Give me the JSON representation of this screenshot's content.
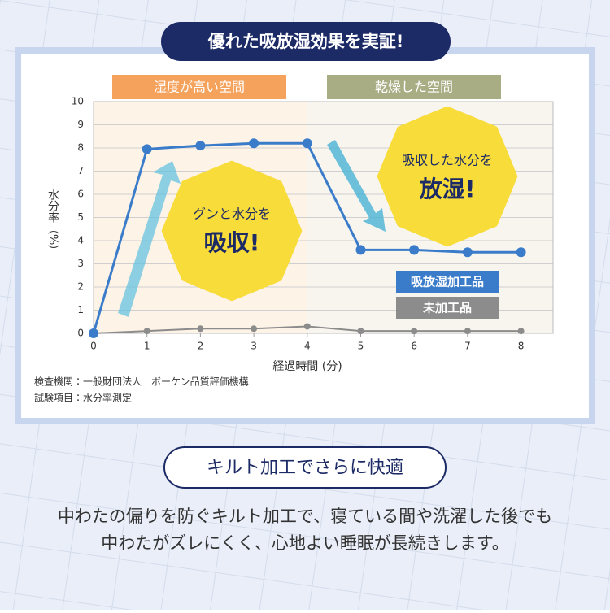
{
  "banner": "優れた吸放湿効果を実証!",
  "chart_data": {
    "type": "line",
    "regions": [
      "湿度が高い空間",
      "乾燥した空間"
    ],
    "callouts": [
      [
        "グンと水分を",
        "吸収!"
      ],
      [
        "吸収した水分を",
        "放湿!"
      ]
    ],
    "y_label": "水分率（%）",
    "x_label": "経過時間 (分)",
    "x": [
      0,
      1,
      2,
      3,
      4,
      5,
      6,
      7,
      8
    ],
    "series": [
      {
        "name": "吸放湿加工品",
        "color": "#3a7cc9",
        "values": [
          0,
          7.95,
          8.1,
          8.2,
          8.2,
          3.6,
          3.6,
          3.5,
          3.5
        ]
      },
      {
        "name": "未加工品",
        "color": "#8c8c8c",
        "values": [
          0,
          0.1,
          0.2,
          0.2,
          0.3,
          0.1,
          0.1,
          0.1,
          0.1
        ]
      }
    ],
    "xlim": [
      0,
      8.6
    ],
    "ylim": [
      0,
      10
    ],
    "xticks": [
      0,
      1,
      2,
      3,
      4,
      5,
      6,
      7,
      8
    ],
    "yticks": [
      0,
      1,
      2,
      3,
      4,
      5,
      6,
      7,
      8,
      9,
      10
    ],
    "grid": true
  },
  "notes": [
    "検査機関：一般財団法人　ボーケン品質評価機構",
    "試験項目：水分率測定"
  ],
  "section_title": "キルト加工でさらに快適",
  "body": [
    "中わたの偏りを防ぐキルト加工で、寝ている間や洗濯した後でも",
    "中わたがズレにくく、心地よい睡眠が長続きします。"
  ]
}
